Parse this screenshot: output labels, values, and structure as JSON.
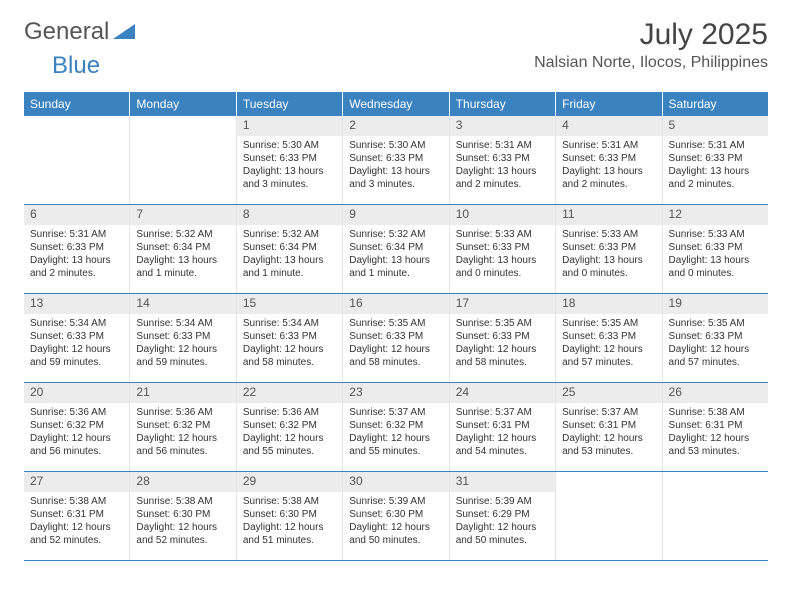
{
  "logo": {
    "text1": "General",
    "text2": "Blue"
  },
  "title": "July 2025",
  "location": "Nalsian Norte, Ilocos, Philippines",
  "colors": {
    "header_bg": "#3b83c0",
    "header_text": "#ffffff",
    "daynum_bg": "#ececec",
    "body_text": "#333333",
    "divider": "#3b83c0"
  },
  "dayNames": [
    "Sunday",
    "Monday",
    "Tuesday",
    "Wednesday",
    "Thursday",
    "Friday",
    "Saturday"
  ],
  "weeks": [
    [
      {
        "n": "",
        "sr": "",
        "ss": "",
        "dl": ""
      },
      {
        "n": "",
        "sr": "",
        "ss": "",
        "dl": ""
      },
      {
        "n": "1",
        "sr": "Sunrise: 5:30 AM",
        "ss": "Sunset: 6:33 PM",
        "dl": "Daylight: 13 hours and 3 minutes."
      },
      {
        "n": "2",
        "sr": "Sunrise: 5:30 AM",
        "ss": "Sunset: 6:33 PM",
        "dl": "Daylight: 13 hours and 3 minutes."
      },
      {
        "n": "3",
        "sr": "Sunrise: 5:31 AM",
        "ss": "Sunset: 6:33 PM",
        "dl": "Daylight: 13 hours and 2 minutes."
      },
      {
        "n": "4",
        "sr": "Sunrise: 5:31 AM",
        "ss": "Sunset: 6:33 PM",
        "dl": "Daylight: 13 hours and 2 minutes."
      },
      {
        "n": "5",
        "sr": "Sunrise: 5:31 AM",
        "ss": "Sunset: 6:33 PM",
        "dl": "Daylight: 13 hours and 2 minutes."
      }
    ],
    [
      {
        "n": "6",
        "sr": "Sunrise: 5:31 AM",
        "ss": "Sunset: 6:33 PM",
        "dl": "Daylight: 13 hours and 2 minutes."
      },
      {
        "n": "7",
        "sr": "Sunrise: 5:32 AM",
        "ss": "Sunset: 6:34 PM",
        "dl": "Daylight: 13 hours and 1 minute."
      },
      {
        "n": "8",
        "sr": "Sunrise: 5:32 AM",
        "ss": "Sunset: 6:34 PM",
        "dl": "Daylight: 13 hours and 1 minute."
      },
      {
        "n": "9",
        "sr": "Sunrise: 5:32 AM",
        "ss": "Sunset: 6:34 PM",
        "dl": "Daylight: 13 hours and 1 minute."
      },
      {
        "n": "10",
        "sr": "Sunrise: 5:33 AM",
        "ss": "Sunset: 6:33 PM",
        "dl": "Daylight: 13 hours and 0 minutes."
      },
      {
        "n": "11",
        "sr": "Sunrise: 5:33 AM",
        "ss": "Sunset: 6:33 PM",
        "dl": "Daylight: 13 hours and 0 minutes."
      },
      {
        "n": "12",
        "sr": "Sunrise: 5:33 AM",
        "ss": "Sunset: 6:33 PM",
        "dl": "Daylight: 13 hours and 0 minutes."
      }
    ],
    [
      {
        "n": "13",
        "sr": "Sunrise: 5:34 AM",
        "ss": "Sunset: 6:33 PM",
        "dl": "Daylight: 12 hours and 59 minutes."
      },
      {
        "n": "14",
        "sr": "Sunrise: 5:34 AM",
        "ss": "Sunset: 6:33 PM",
        "dl": "Daylight: 12 hours and 59 minutes."
      },
      {
        "n": "15",
        "sr": "Sunrise: 5:34 AM",
        "ss": "Sunset: 6:33 PM",
        "dl": "Daylight: 12 hours and 58 minutes."
      },
      {
        "n": "16",
        "sr": "Sunrise: 5:35 AM",
        "ss": "Sunset: 6:33 PM",
        "dl": "Daylight: 12 hours and 58 minutes."
      },
      {
        "n": "17",
        "sr": "Sunrise: 5:35 AM",
        "ss": "Sunset: 6:33 PM",
        "dl": "Daylight: 12 hours and 58 minutes."
      },
      {
        "n": "18",
        "sr": "Sunrise: 5:35 AM",
        "ss": "Sunset: 6:33 PM",
        "dl": "Daylight: 12 hours and 57 minutes."
      },
      {
        "n": "19",
        "sr": "Sunrise: 5:35 AM",
        "ss": "Sunset: 6:33 PM",
        "dl": "Daylight: 12 hours and 57 minutes."
      }
    ],
    [
      {
        "n": "20",
        "sr": "Sunrise: 5:36 AM",
        "ss": "Sunset: 6:32 PM",
        "dl": "Daylight: 12 hours and 56 minutes."
      },
      {
        "n": "21",
        "sr": "Sunrise: 5:36 AM",
        "ss": "Sunset: 6:32 PM",
        "dl": "Daylight: 12 hours and 56 minutes."
      },
      {
        "n": "22",
        "sr": "Sunrise: 5:36 AM",
        "ss": "Sunset: 6:32 PM",
        "dl": "Daylight: 12 hours and 55 minutes."
      },
      {
        "n": "23",
        "sr": "Sunrise: 5:37 AM",
        "ss": "Sunset: 6:32 PM",
        "dl": "Daylight: 12 hours and 55 minutes."
      },
      {
        "n": "24",
        "sr": "Sunrise: 5:37 AM",
        "ss": "Sunset: 6:31 PM",
        "dl": "Daylight: 12 hours and 54 minutes."
      },
      {
        "n": "25",
        "sr": "Sunrise: 5:37 AM",
        "ss": "Sunset: 6:31 PM",
        "dl": "Daylight: 12 hours and 53 minutes."
      },
      {
        "n": "26",
        "sr": "Sunrise: 5:38 AM",
        "ss": "Sunset: 6:31 PM",
        "dl": "Daylight: 12 hours and 53 minutes."
      }
    ],
    [
      {
        "n": "27",
        "sr": "Sunrise: 5:38 AM",
        "ss": "Sunset: 6:31 PM",
        "dl": "Daylight: 12 hours and 52 minutes."
      },
      {
        "n": "28",
        "sr": "Sunrise: 5:38 AM",
        "ss": "Sunset: 6:30 PM",
        "dl": "Daylight: 12 hours and 52 minutes."
      },
      {
        "n": "29",
        "sr": "Sunrise: 5:38 AM",
        "ss": "Sunset: 6:30 PM",
        "dl": "Daylight: 12 hours and 51 minutes."
      },
      {
        "n": "30",
        "sr": "Sunrise: 5:39 AM",
        "ss": "Sunset: 6:30 PM",
        "dl": "Daylight: 12 hours and 50 minutes."
      },
      {
        "n": "31",
        "sr": "Sunrise: 5:39 AM",
        "ss": "Sunset: 6:29 PM",
        "dl": "Daylight: 12 hours and 50 minutes."
      },
      {
        "n": "",
        "sr": "",
        "ss": "",
        "dl": ""
      },
      {
        "n": "",
        "sr": "",
        "ss": "",
        "dl": ""
      }
    ]
  ]
}
